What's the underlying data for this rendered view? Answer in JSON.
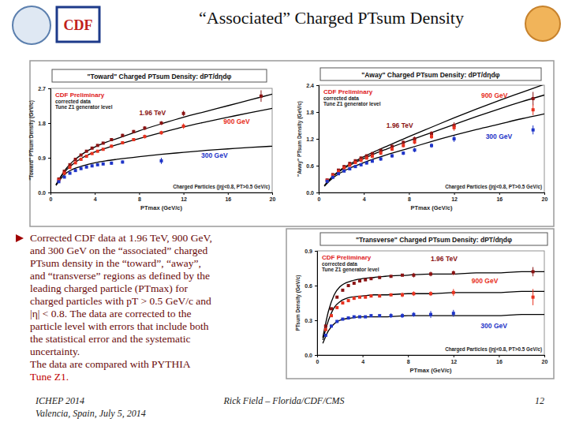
{
  "slide": {
    "title": "“Associated” Charged PTsum Density",
    "logo_text": "CDF",
    "bullet_lines": [
      "Corrected CDF data at 1.96 TeV, 900 GeV,",
      "and 300 GeV on the “associated” charged",
      "PTsum density in the “toward”, “away”,",
      "and “transverse” regions as defined by the",
      "leading charged particle (PTmax) for",
      "charged particles with pT > 0.5 GeV/c and",
      "|η| < 0.8. The data are corrected to the",
      "particle level with errors that include both",
      "the statistical error and the systematic",
      "uncertainty.",
      "The data are compared with PYTHIA",
      "Tune Z1."
    ],
    "footer": {
      "event": "ICHEP 2014",
      "place": "Valencia, Spain, July 5, 2014",
      "author": "Rick Field – Florida/CDF/CMS",
      "page": "12"
    }
  },
  "chart_data": [
    {
      "type": "scatter",
      "title": "\"Toward\" Charged PTsum Density: dPT/dηdφ",
      "x_label": "PTmax (GeV/c)",
      "y_label": "\"Toward\" PTsum Density (GeV/c)",
      "notes": [
        "CDF Preliminary",
        "corrected data",
        "Tune Z1 generator level"
      ],
      "annotation": "Charged Particles (|η|<0.8, PT>0.5 GeV/c)",
      "xlim": [
        0,
        20
      ],
      "xticks": [
        0,
        4,
        8,
        12,
        16,
        20
      ],
      "ylim": [
        0,
        2.7
      ],
      "yticks": [
        {
          "value": 0,
          "label": "0.0"
        },
        0.9,
        1.8,
        2.7
      ],
      "x": [
        0.75,
        1.25,
        1.75,
        2.25,
        2.75,
        3.25,
        3.75,
        4.25,
        4.75,
        5.5,
        6.5,
        7.5,
        8.5,
        10,
        12,
        19
      ],
      "model_x": [
        0.5,
        1,
        1.5,
        2,
        3,
        4,
        5,
        6,
        8,
        10,
        12,
        14,
        16,
        18,
        20
      ],
      "series": [
        {
          "name": "1.96 TeV",
          "color": "#8b1414",
          "marker": "square",
          "values": [
            0.35,
            0.55,
            0.72,
            0.86,
            0.97,
            1.07,
            1.15,
            1.22,
            1.28,
            1.37,
            1.48,
            1.58,
            1.67,
            1.8,
            2.05,
            2.5
          ],
          "errors": [
            0.02,
            0.02,
            0.02,
            0.03,
            0.03,
            0.03,
            0.03,
            0.03,
            0.03,
            0.04,
            0.04,
            0.04,
            0.05,
            0.05,
            0.07,
            0.15
          ],
          "model": [
            0.2,
            0.45,
            0.65,
            0.8,
            1.02,
            1.18,
            1.3,
            1.4,
            1.6,
            1.78,
            1.95,
            2.1,
            2.25,
            2.4,
            2.55
          ]
        },
        {
          "name": "900 GeV",
          "color": "#e8321f",
          "marker": "square",
          "values": [
            0.32,
            0.5,
            0.65,
            0.77,
            0.86,
            0.94,
            1.01,
            1.07,
            1.12,
            1.2,
            1.29,
            1.37,
            1.45,
            1.55,
            1.72,
            null
          ],
          "errors": [
            0.02,
            0.02,
            0.02,
            0.03,
            0.03,
            0.03,
            0.03,
            0.03,
            0.03,
            0.04,
            0.04,
            0.04,
            0.05,
            0.05,
            0.07,
            null
          ],
          "model": [
            0.2,
            0.43,
            0.6,
            0.73,
            0.92,
            1.05,
            1.15,
            1.24,
            1.4,
            1.55,
            1.7,
            1.83,
            1.95,
            2.07,
            2.18
          ]
        },
        {
          "name": "300 GeV",
          "color": "#1f35c8",
          "marker": "square",
          "values": [
            0.28,
            0.4,
            0.5,
            0.57,
            0.62,
            0.66,
            0.69,
            0.72,
            0.74,
            0.76,
            0.79,
            null,
            null,
            0.82,
            null,
            null
          ],
          "errors": [
            0.02,
            0.02,
            0.02,
            0.02,
            0.03,
            0.03,
            0.03,
            0.03,
            0.03,
            0.04,
            0.04,
            null,
            null,
            0.08,
            null,
            null
          ],
          "model": [
            0.18,
            0.38,
            0.52,
            0.6,
            0.7,
            0.77,
            0.82,
            0.86,
            0.93,
            0.99,
            1.04,
            1.09,
            1.13,
            1.17,
            1.2
          ]
        }
      ]
    },
    {
      "type": "scatter",
      "title": "\"Away\" Charged PTsum Density: dPT/dηdφ",
      "x_label": "PTmax (GeV/c)",
      "y_label": "\"Away\" PTsum Density (GeV/c)",
      "notes": [
        "CDF Preliminary",
        "corrected data",
        "Tune Z1 generator level"
      ],
      "annotation": "Charged Particles (|η|<0.8, PT>0.5 GeV/c)",
      "xlim": [
        0,
        20
      ],
      "xticks": [
        0,
        4,
        8,
        12,
        16,
        20
      ],
      "ylim": [
        0,
        2.4
      ],
      "yticks": [
        {
          "value": 0,
          "label": "0.0"
        },
        0.6,
        1.2,
        1.8,
        2.4
      ],
      "x": [
        0.75,
        1.25,
        1.75,
        2.25,
        2.75,
        3.25,
        3.75,
        4.25,
        4.75,
        5.5,
        6.5,
        7.5,
        8.5,
        10,
        12,
        19
      ],
      "model_x": [
        0.5,
        1,
        1.5,
        2,
        3,
        4,
        5,
        6,
        8,
        10,
        12,
        14,
        16,
        18,
        20
      ],
      "series": [
        {
          "name": "1.96 TeV",
          "color": "#8b1414",
          "marker": "square",
          "values": [
            0.28,
            0.4,
            0.5,
            0.58,
            0.65,
            0.71,
            0.77,
            0.82,
            0.87,
            0.94,
            1.03,
            1.12,
            1.2,
            1.32,
            1.5,
            2.1
          ],
          "errors": [
            0.02,
            0.02,
            0.02,
            0.02,
            0.03,
            0.03,
            0.03,
            0.03,
            0.03,
            0.04,
            0.04,
            0.04,
            0.05,
            0.05,
            0.07,
            0.15
          ],
          "model": [
            0.15,
            0.3,
            0.42,
            0.52,
            0.67,
            0.8,
            0.92,
            1.03,
            1.25,
            1.46,
            1.67,
            1.87,
            2.06,
            2.24,
            2.42
          ]
        },
        {
          "name": "900 GeV",
          "color": "#e8321f",
          "marker": "square",
          "values": [
            0.27,
            0.38,
            0.47,
            0.55,
            0.61,
            0.67,
            0.72,
            0.77,
            0.81,
            0.88,
            0.97,
            1.05,
            1.13,
            1.25,
            1.45,
            1.85
          ],
          "errors": [
            0.02,
            0.02,
            0.02,
            0.02,
            0.03,
            0.03,
            0.03,
            0.03,
            0.03,
            0.04,
            0.04,
            0.04,
            0.05,
            0.05,
            0.07,
            0.12
          ],
          "model": [
            0.15,
            0.3,
            0.41,
            0.5,
            0.64,
            0.76,
            0.87,
            0.97,
            1.16,
            1.34,
            1.52,
            1.7,
            1.87,
            2.03,
            2.18
          ]
        },
        {
          "name": "300 GeV",
          "color": "#1f35c8",
          "marker": "square",
          "values": [
            0.25,
            0.34,
            0.42,
            0.48,
            0.53,
            0.58,
            0.62,
            0.66,
            0.7,
            0.75,
            0.82,
            0.88,
            0.95,
            1.05,
            1.2,
            1.4
          ],
          "errors": [
            0.02,
            0.02,
            0.02,
            0.02,
            0.03,
            0.03,
            0.03,
            0.03,
            0.03,
            0.04,
            0.04,
            0.04,
            0.05,
            0.05,
            0.07,
            0.1
          ],
          "model": [
            0.14,
            0.27,
            0.37,
            0.45,
            0.57,
            0.67,
            0.76,
            0.84,
            0.99,
            1.14,
            1.28,
            1.41,
            1.53,
            1.65,
            1.76
          ]
        }
      ]
    },
    {
      "type": "scatter",
      "title": "\"Transverse\" Charged PTsum Density: dPT/dηdφ",
      "x_label": "PTmax (GeV/c)",
      "y_label": "PTsum Density (GeV/c)",
      "notes": [
        "CDF Preliminary",
        "corrected data",
        "Tune Z1 generator level"
      ],
      "annotation": "Charged Particles (|η|<0.8, PT>0.5 GeV/c)",
      "xlim": [
        0,
        20
      ],
      "xticks": [
        0,
        4,
        8,
        12,
        16,
        20
      ],
      "ylim": [
        0,
        0.9
      ],
      "yticks": [
        {
          "value": 0,
          "label": "0.0"
        },
        0.3,
        0.6,
        0.9
      ],
      "x": [
        0.75,
        1.25,
        1.75,
        2.25,
        2.75,
        3.25,
        3.75,
        4.25,
        4.75,
        5.5,
        6.5,
        7.5,
        8.5,
        10,
        12,
        19
      ],
      "model_x": [
        0.5,
        1,
        1.5,
        2,
        3,
        4,
        5,
        6,
        8,
        10,
        12,
        14,
        16,
        18,
        20
      ],
      "series": [
        {
          "name": "1.96 TeV",
          "color": "#8b1414",
          "marker": "square",
          "values": [
            0.25,
            0.4,
            0.5,
            0.56,
            0.6,
            0.62,
            0.64,
            0.65,
            0.66,
            0.67,
            0.68,
            0.69,
            0.69,
            0.7,
            0.71,
            0.72
          ],
          "errors": [
            0.01,
            0.01,
            0.01,
            0.01,
            0.01,
            0.01,
            0.01,
            0.01,
            0.01,
            0.01,
            0.01,
            0.01,
            0.02,
            0.02,
            0.02,
            0.04
          ],
          "model": [
            0.15,
            0.38,
            0.52,
            0.59,
            0.64,
            0.66,
            0.67,
            0.68,
            0.69,
            0.7,
            0.7,
            0.71,
            0.71,
            0.72,
            0.72
          ]
        },
        {
          "name": "900 GeV",
          "color": "#e8321f",
          "marker": "square",
          "values": [
            0.22,
            0.34,
            0.41,
            0.45,
            0.47,
            0.49,
            0.5,
            0.5,
            0.51,
            0.51,
            0.52,
            0.52,
            0.53,
            0.53,
            0.54,
            0.5
          ],
          "errors": [
            0.01,
            0.01,
            0.01,
            0.01,
            0.01,
            0.01,
            0.01,
            0.01,
            0.01,
            0.01,
            0.01,
            0.02,
            0.02,
            0.02,
            0.03,
            0.07
          ],
          "model": [
            0.13,
            0.3,
            0.41,
            0.46,
            0.5,
            0.51,
            0.52,
            0.52,
            0.53,
            0.53,
            0.54,
            0.54,
            0.54,
            0.55,
            0.55
          ]
        },
        {
          "name": "300 GeV",
          "color": "#1f35c8",
          "marker": "square",
          "values": [
            0.17,
            0.25,
            0.29,
            0.31,
            0.32,
            0.33,
            0.33,
            0.33,
            0.34,
            0.34,
            0.34,
            0.34,
            0.35,
            0.35,
            0.36,
            null
          ],
          "errors": [
            0.01,
            0.01,
            0.01,
            0.01,
            0.01,
            0.01,
            0.01,
            0.01,
            0.01,
            0.01,
            0.02,
            0.02,
            0.02,
            0.03,
            0.03,
            null
          ],
          "model": [
            0.1,
            0.21,
            0.27,
            0.3,
            0.32,
            0.33,
            0.33,
            0.33,
            0.34,
            0.34,
            0.34,
            0.34,
            0.34,
            0.35,
            0.35
          ]
        }
      ]
    }
  ]
}
